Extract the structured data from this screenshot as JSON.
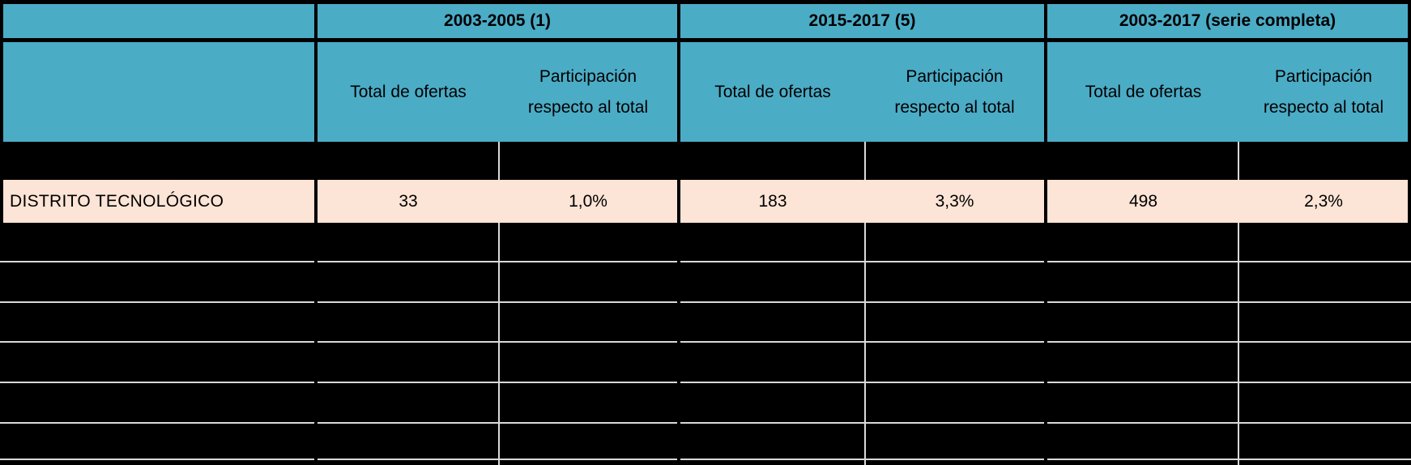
{
  "colors": {
    "header_teal": "#4BACC6",
    "highlight_peach": "#FCE4D6",
    "grid_white": "#D9D9D9",
    "bg_black": "#000000",
    "text_color": "#000000"
  },
  "header": {
    "groups": [
      {
        "label": "2003-2005 (1)"
      },
      {
        "label": "2015-2017 (5)"
      },
      {
        "label": "2003-2017 (serie completa)"
      }
    ],
    "subcolumns": {
      "total": "Total de ofertas",
      "share": "Participación respecto al total"
    }
  },
  "row": {
    "label": "DISTRITO TECNOLÓGICO",
    "values": [
      "33",
      "1,0%",
      "183",
      "3,3%",
      "498",
      "2,3%"
    ]
  },
  "chart_data": {
    "type": "table",
    "title": "",
    "column_groups": [
      "2003-2005 (1)",
      "2015-2017 (5)",
      "2003-2017 (serie completa)"
    ],
    "columns_per_group": [
      "Total de ofertas",
      "Participación respecto al total"
    ],
    "rows": [
      {
        "label": "DISTRITO TECNOLÓGICO",
        "values_display": [
          "33",
          "1,0%",
          "183",
          "3,3%",
          "498",
          "2,3%"
        ],
        "totals": [
          33,
          183,
          498
        ],
        "share_pct": [
          1.0,
          3.3,
          2.3
        ]
      }
    ],
    "layout_note": "All other table rows are blacked out (redacted); only grid lines visible"
  }
}
